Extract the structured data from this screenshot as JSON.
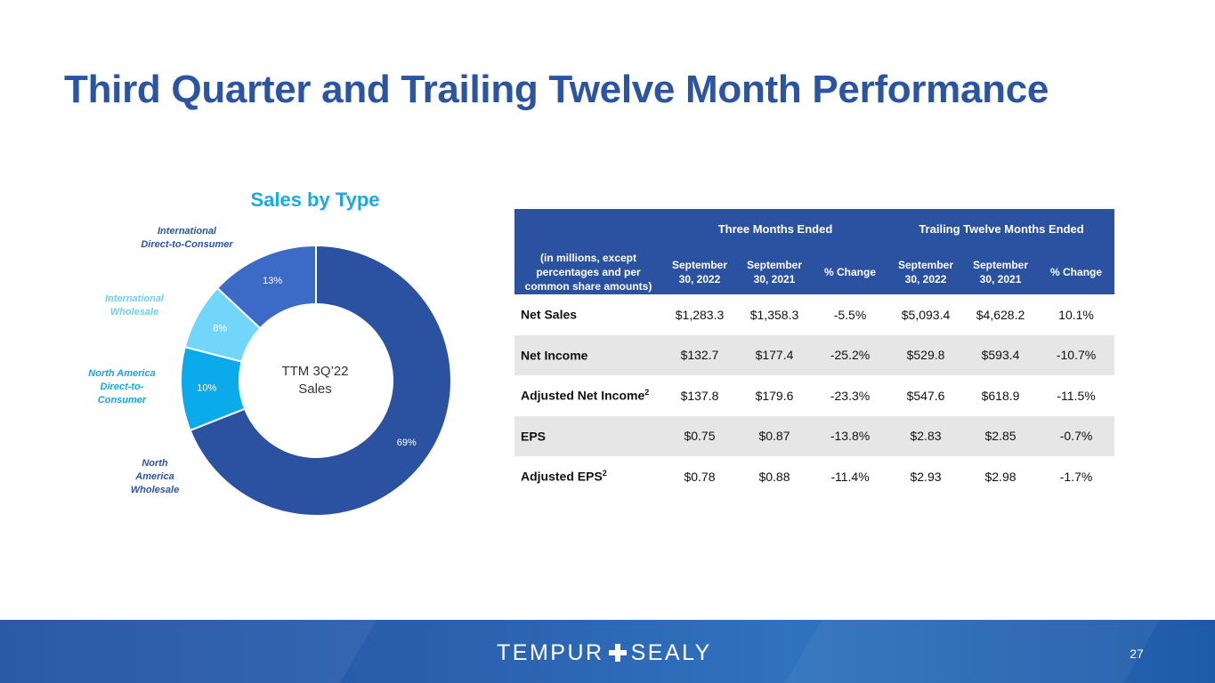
{
  "page": {
    "title": "Third Quarter and Trailing Twelve Month Performance",
    "page_number": "27"
  },
  "brand": {
    "left": "TEMPUR",
    "right": "SEALY"
  },
  "chart_data": {
    "type": "pie",
    "title": "Sales by Type",
    "center_label": [
      "TTM 3Q’22",
      "Sales"
    ],
    "segments": [
      {
        "label": "North America Wholesale",
        "value": 69,
        "label_text": "69%",
        "color": "#2a52a0"
      },
      {
        "label": "North America Direct-to-Consumer",
        "value": 10,
        "label_text": "10%",
        "color": "#0aaaeb"
      },
      {
        "label": "International Wholesale",
        "value": 8,
        "label_text": "8%",
        "color": "#72d5fa"
      },
      {
        "label": "International Direct-to-Consumer",
        "value": 13,
        "label_text": "13%",
        "color": "#3c6ac7"
      }
    ]
  },
  "legend_labels": {
    "intl_dtc": [
      "International",
      "Direct-to-Consumer"
    ],
    "intl_wholesale": [
      "International",
      "Wholesale"
    ],
    "na_dtc": [
      "North America",
      "Direct-to-",
      "Consumer"
    ],
    "na_wholesale": [
      "North",
      "America",
      "Wholesale"
    ]
  },
  "table": {
    "group_headers": [
      "Three Months Ended",
      "Trailing Twelve Months Ended"
    ],
    "row_header_label": "(in millions, except percentages and per common share amounts)",
    "columns": [
      "September 30, 2022",
      "September 30, 2021",
      "% Change",
      "September 30, 2022",
      "September 30, 2021",
      "% Change"
    ],
    "rows": [
      {
        "label": "Net Sales",
        "sup": "",
        "values": [
          "$1,283.3",
          "$1,358.3",
          "-5.5%",
          "$5,093.4",
          "$4,628.2",
          "10.1%"
        ]
      },
      {
        "label": "Net Income",
        "sup": "",
        "values": [
          "$132.7",
          "$177.4",
          "-25.2%",
          "$529.8",
          "$593.4",
          "-10.7%"
        ]
      },
      {
        "label": "Adjusted Net Income",
        "sup": "2",
        "values": [
          "$137.8",
          "$179.6",
          "-23.3%",
          "$547.6",
          "$618.9",
          "-11.5%"
        ]
      },
      {
        "label": "EPS",
        "sup": "",
        "values": [
          "$0.75",
          "$0.87",
          "-13.8%",
          "$2.83",
          "$2.85",
          "-0.7%"
        ]
      },
      {
        "label": "Adjusted EPS",
        "sup": "2",
        "values": [
          "$0.78",
          "$0.88",
          "-11.4%",
          "$2.93",
          "$2.98",
          "-1.7%"
        ]
      }
    ]
  }
}
